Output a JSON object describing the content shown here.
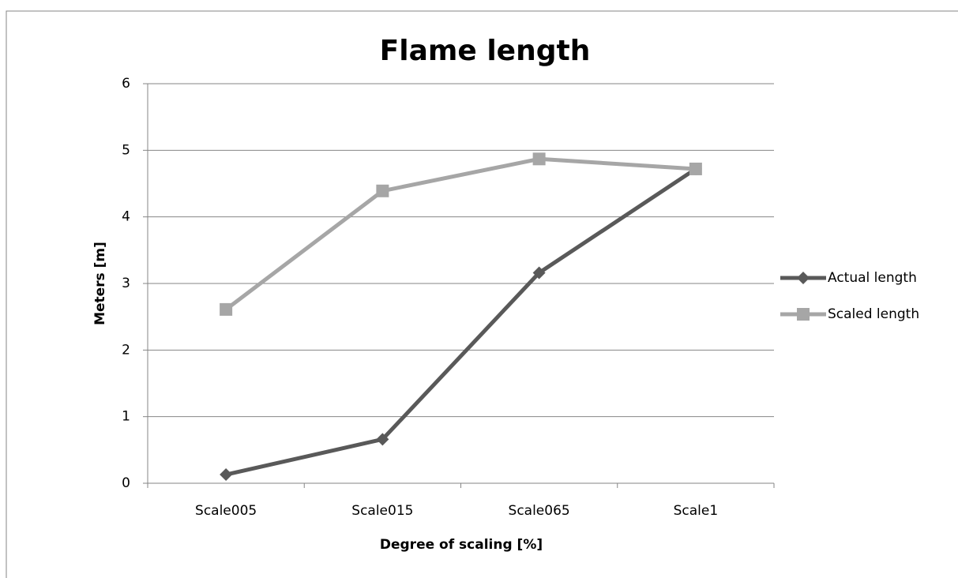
{
  "chart_data": {
    "type": "line",
    "title": "Flame length",
    "x_label": "Degree of scaling [%]",
    "y_label": "Meters [m]",
    "categories": [
      "Scale005",
      "Scale015",
      "Scale065",
      "Scale1"
    ],
    "series": [
      {
        "name": "Actual length",
        "color": "#595959",
        "marker": "diamond",
        "values": [
          0.13,
          0.66,
          3.16,
          4.72
        ]
      },
      {
        "name": "Scaled length",
        "color": "#a6a6a6",
        "marker": "square",
        "values": [
          2.61,
          4.39,
          4.87,
          4.72
        ]
      }
    ],
    "ylim": [
      0,
      6
    ],
    "yticks": [
      0,
      1,
      2,
      3,
      4,
      5,
      6
    ],
    "grid": true,
    "legend": "right"
  }
}
